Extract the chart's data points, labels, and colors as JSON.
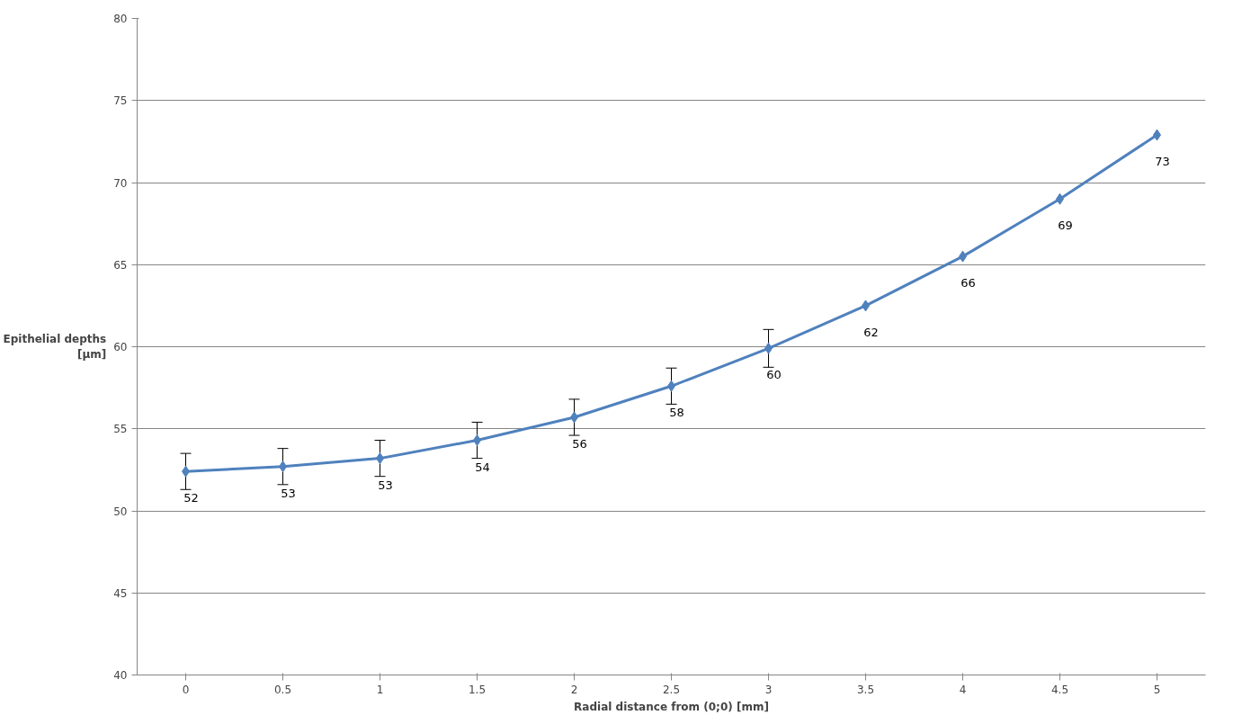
{
  "chart_data": {
    "type": "line",
    "xlabel": "Radial distance from (0;0) [mm]",
    "ylabel": "Epithelial depths [µm]",
    "categories": [
      "0",
      "0.5",
      "1",
      "1.5",
      "2",
      "2.5",
      "3",
      "3.5",
      "4",
      "4.5",
      "5"
    ],
    "series": [
      {
        "color": "#4f81bd",
        "values": [
          52.4,
          52.7,
          53.2,
          54.3,
          55.7,
          57.6,
          59.9,
          62.5,
          65.5,
          69.0,
          72.9
        ],
        "errors": [
          1.1,
          1.1,
          1.1,
          1.1,
          1.1,
          1.1,
          1.15,
          null,
          null,
          null,
          null
        ],
        "value_labels": [
          "52",
          "53",
          "53",
          "54",
          "56",
          "58",
          "60",
          "62",
          "66",
          "69",
          "73"
        ]
      }
    ],
    "ylim": [
      40,
      80
    ],
    "yticks": [
      40,
      45,
      50,
      55,
      60,
      65,
      70,
      75,
      80
    ],
    "grid": "y",
    "marker": "diamond",
    "line_style": "solid"
  }
}
